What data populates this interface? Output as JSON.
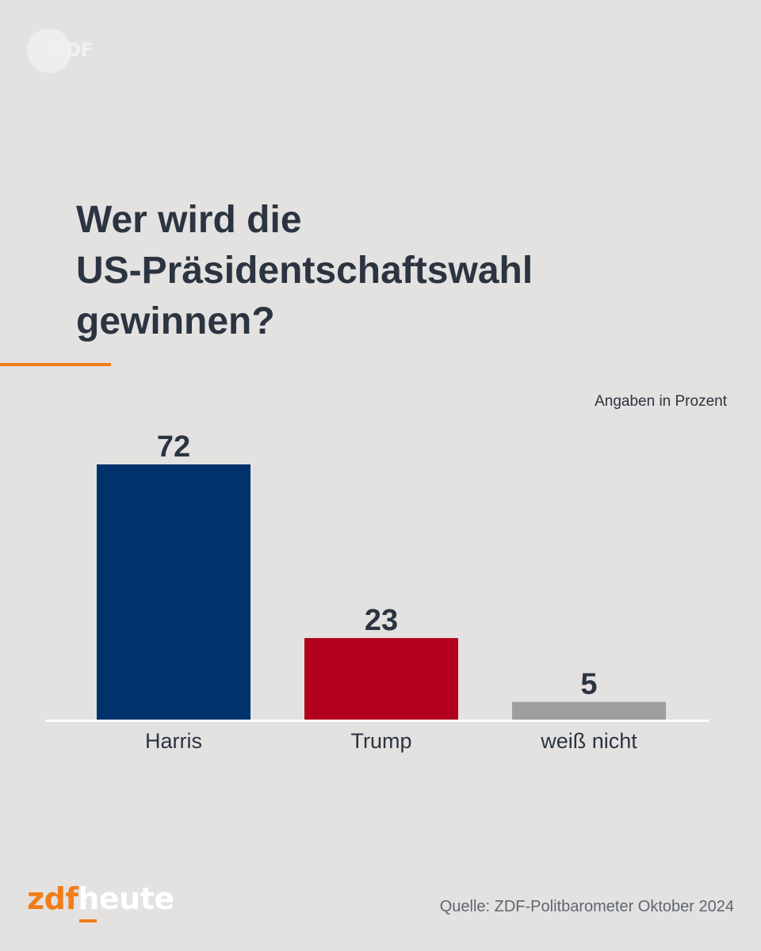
{
  "brand": {
    "top_logo": "ZDF",
    "footer_zdf": "zdf",
    "footer_heute": "heute"
  },
  "title_lines": [
    "Wer wird die",
    "US-Präsidentschaftswahl",
    "gewinnen?"
  ],
  "unit_note": "Angaben in Prozent",
  "source": "Quelle: ZDF-Politbarometer Oktober 2024",
  "colors": {
    "background": "#e3e2e1",
    "accent": "#f07d1a",
    "harris": "#00326b",
    "trump": "#b2001c",
    "unknown": "#9e9e9e"
  },
  "chart_data": {
    "type": "bar",
    "categories": [
      "Harris",
      "Trump",
      "weiß nicht"
    ],
    "values": [
      72,
      23,
      5
    ],
    "data_labels": [
      "72",
      "23",
      "5"
    ],
    "colors": [
      "#00326b",
      "#b2001c",
      "#9e9e9e"
    ],
    "ylim": [
      0,
      72
    ],
    "grid": false,
    "axis": "x-baseline-only"
  }
}
